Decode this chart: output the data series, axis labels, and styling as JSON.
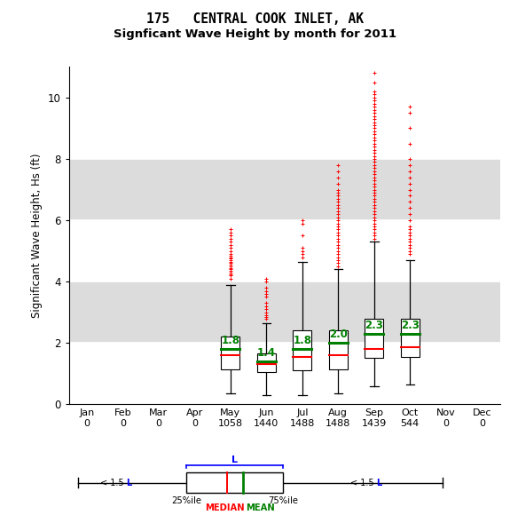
{
  "title_line1": "175   CENTRAL COOK INLET, AK",
  "title_line2": "Signficant Wave Height by month for 2011",
  "ylabel": "Significant Wave Height, Hs (ft)",
  "months": [
    "Jan",
    "Feb",
    "Mar",
    "Apr",
    "May",
    "Jun",
    "Jul",
    "Aug",
    "Sep",
    "Oct",
    "Nov",
    "Dec"
  ],
  "counts": [
    0,
    0,
    0,
    0,
    1058,
    1440,
    1488,
    1488,
    1439,
    544,
    0,
    0
  ],
  "ylim": [
    0,
    11.0
  ],
  "yticks": [
    0,
    2,
    4,
    6,
    8,
    10
  ],
  "bg_color": "#dcdcdc",
  "white_band_color": "#f0f0f0",
  "box_data": {
    "May": {
      "q1": 1.15,
      "median": 1.6,
      "q3": 2.2,
      "whisker_low": 0.35,
      "whisker_high": 3.9,
      "mean": 1.8,
      "fliers_high": [
        4.1,
        4.2,
        4.25,
        4.3,
        4.35,
        4.4,
        4.45,
        4.5,
        4.55,
        4.6,
        4.65,
        4.7,
        4.75,
        4.8,
        4.85,
        4.9,
        5.0,
        5.1,
        5.2,
        5.3,
        5.4,
        5.5,
        5.6,
        5.7
      ]
    },
    "Jun": {
      "q1": 1.05,
      "median": 1.3,
      "q3": 1.65,
      "whisker_low": 0.3,
      "whisker_high": 2.65,
      "mean": 1.4,
      "fliers_high": [
        2.8,
        2.85,
        2.9,
        3.0,
        3.1,
        3.2,
        3.3,
        3.5,
        3.6,
        3.7,
        3.8,
        4.0,
        4.1
      ]
    },
    "Jul": {
      "q1": 1.1,
      "median": 1.55,
      "q3": 2.4,
      "whisker_low": 0.3,
      "whisker_high": 4.65,
      "mean": 1.8,
      "fliers_high": [
        4.8,
        4.9,
        5.0,
        5.1,
        5.5,
        5.9,
        6.0
      ]
    },
    "Aug": {
      "q1": 1.15,
      "median": 1.6,
      "q3": 2.4,
      "whisker_low": 0.35,
      "whisker_high": 4.4,
      "mean": 2.0,
      "fliers_high": [
        4.5,
        4.6,
        4.7,
        4.8,
        4.9,
        5.0,
        5.1,
        5.2,
        5.3,
        5.4,
        5.5,
        5.6,
        5.7,
        5.8,
        5.9,
        6.0,
        6.1,
        6.2,
        6.3,
        6.4,
        6.5,
        6.6,
        6.7,
        6.8,
        6.9,
        7.0,
        7.2,
        7.4,
        7.6,
        7.8
      ]
    },
    "Sep": {
      "q1": 1.5,
      "median": 1.8,
      "q3": 2.8,
      "whisker_low": 0.6,
      "whisker_high": 5.3,
      "mean": 2.3,
      "fliers_high": [
        5.4,
        5.5,
        5.6,
        5.7,
        5.8,
        5.9,
        6.0,
        6.1,
        6.2,
        6.3,
        6.4,
        6.5,
        6.6,
        6.7,
        6.8,
        6.9,
        7.0,
        7.1,
        7.2,
        7.3,
        7.4,
        7.5,
        7.6,
        7.7,
        7.8,
        7.9,
        8.0,
        8.1,
        8.2,
        8.3,
        8.4,
        8.5,
        8.6,
        8.7,
        8.8,
        8.9,
        9.0,
        9.1,
        9.2,
        9.3,
        9.4,
        9.5,
        9.6,
        9.7,
        9.8,
        9.9,
        10.0,
        10.1,
        10.2,
        10.5,
        10.8
      ]
    },
    "Oct": {
      "q1": 1.55,
      "median": 1.85,
      "q3": 2.8,
      "whisker_low": 0.65,
      "whisker_high": 4.7,
      "mean": 2.3,
      "fliers_high": [
        4.9,
        5.0,
        5.1,
        5.2,
        5.3,
        5.4,
        5.5,
        5.6,
        5.7,
        5.8,
        6.0,
        6.2,
        6.4,
        6.6,
        6.8,
        7.0,
        7.2,
        7.4,
        7.6,
        7.8,
        8.0,
        8.5,
        9.0,
        9.5,
        9.7
      ]
    }
  },
  "active_months": [
    "May",
    "Jun",
    "Jul",
    "Aug",
    "Sep",
    "Oct"
  ],
  "month_positions": {
    "Jan": 1,
    "Feb": 2,
    "Mar": 3,
    "Apr": 4,
    "May": 5,
    "Jun": 6,
    "Jul": 7,
    "Aug": 8,
    "Sep": 9,
    "Oct": 10,
    "Nov": 11,
    "Dec": 12
  }
}
